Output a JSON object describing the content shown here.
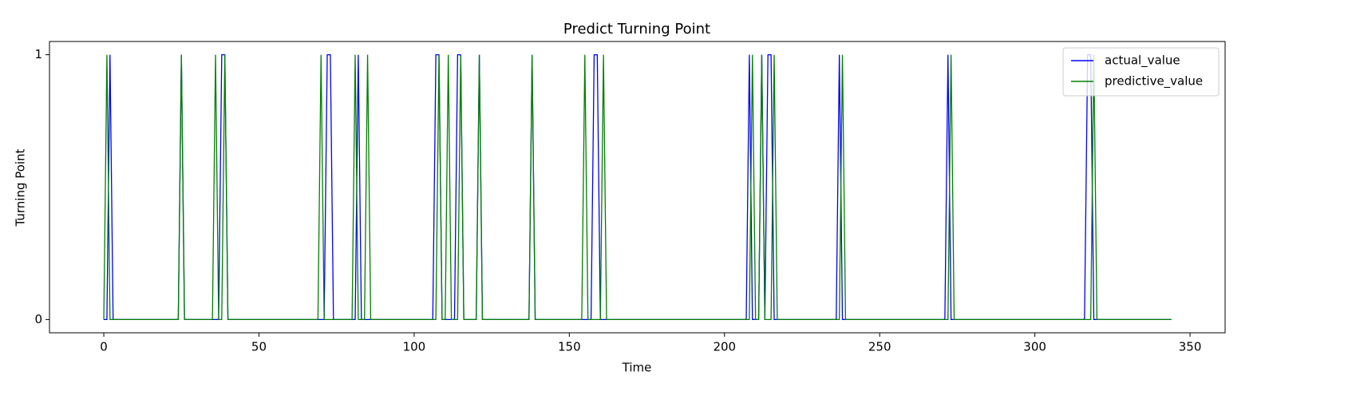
{
  "chart_data": {
    "type": "line",
    "title": "Predict Turning Point",
    "xlabel": "Time",
    "ylabel": "Turning Point",
    "xlim": [
      -17.5,
      361.3
    ],
    "xticks": [
      0,
      50,
      100,
      150,
      200,
      250,
      300,
      350
    ],
    "ylim": [
      -0.05,
      1.05
    ],
    "yticks": [
      0,
      1
    ],
    "legend": "upper right",
    "series": [
      {
        "name": "actual_value",
        "color": "#0000ff",
        "x": [
          0,
          1,
          2,
          3,
          24,
          25,
          26,
          37,
          38,
          39,
          40,
          71,
          72,
          73,
          74,
          81,
          82,
          83,
          106,
          107,
          108,
          109,
          113,
          114,
          115,
          116,
          120,
          121,
          122,
          137,
          138,
          139,
          157,
          158,
          159,
          160,
          207,
          208,
          209,
          211,
          212,
          213,
          214,
          215,
          216,
          236,
          237,
          238,
          271,
          272,
          273,
          316,
          317,
          318,
          319,
          344
        ],
        "values": [
          0,
          0,
          1,
          0,
          0,
          1,
          0,
          0,
          1,
          1,
          0,
          0,
          1,
          1,
          0,
          0,
          1,
          0,
          0,
          1,
          1,
          0,
          0,
          1,
          1,
          0,
          0,
          1,
          0,
          0,
          1,
          0,
          0,
          1,
          1,
          0,
          0,
          1,
          0,
          0,
          1,
          0,
          1,
          1,
          0,
          0,
          1,
          0,
          0,
          1,
          0,
          0,
          1,
          1,
          0,
          0
        ]
      },
      {
        "name": "predictive_value",
        "color": "#008000",
        "x": [
          0,
          1,
          2,
          24,
          25,
          26,
          35,
          36,
          37,
          38,
          39,
          40,
          69,
          70,
          71,
          80,
          81,
          82,
          84,
          85,
          86,
          107,
          108,
          109,
          110,
          111,
          112,
          114,
          115,
          116,
          120,
          121,
          122,
          137,
          138,
          139,
          154,
          155,
          156,
          160,
          161,
          162,
          208,
          209,
          210,
          211,
          212,
          213,
          215,
          216,
          217,
          237,
          238,
          239,
          272,
          273,
          274,
          318,
          319,
          320,
          344
        ],
        "values": [
          0,
          1,
          0,
          0,
          1,
          0,
          0,
          1,
          0,
          0,
          1,
          0,
          0,
          1,
          0,
          0,
          1,
          0,
          0,
          1,
          0,
          0,
          1,
          0,
          0,
          1,
          0,
          0,
          1,
          0,
          0,
          1,
          0,
          0,
          1,
          0,
          0,
          1,
          0,
          0,
          1,
          0,
          0,
          1,
          0,
          0,
          1,
          0,
          0,
          1,
          0,
          0,
          1,
          0,
          0,
          1,
          0,
          0,
          1,
          0,
          0
        ]
      }
    ]
  }
}
